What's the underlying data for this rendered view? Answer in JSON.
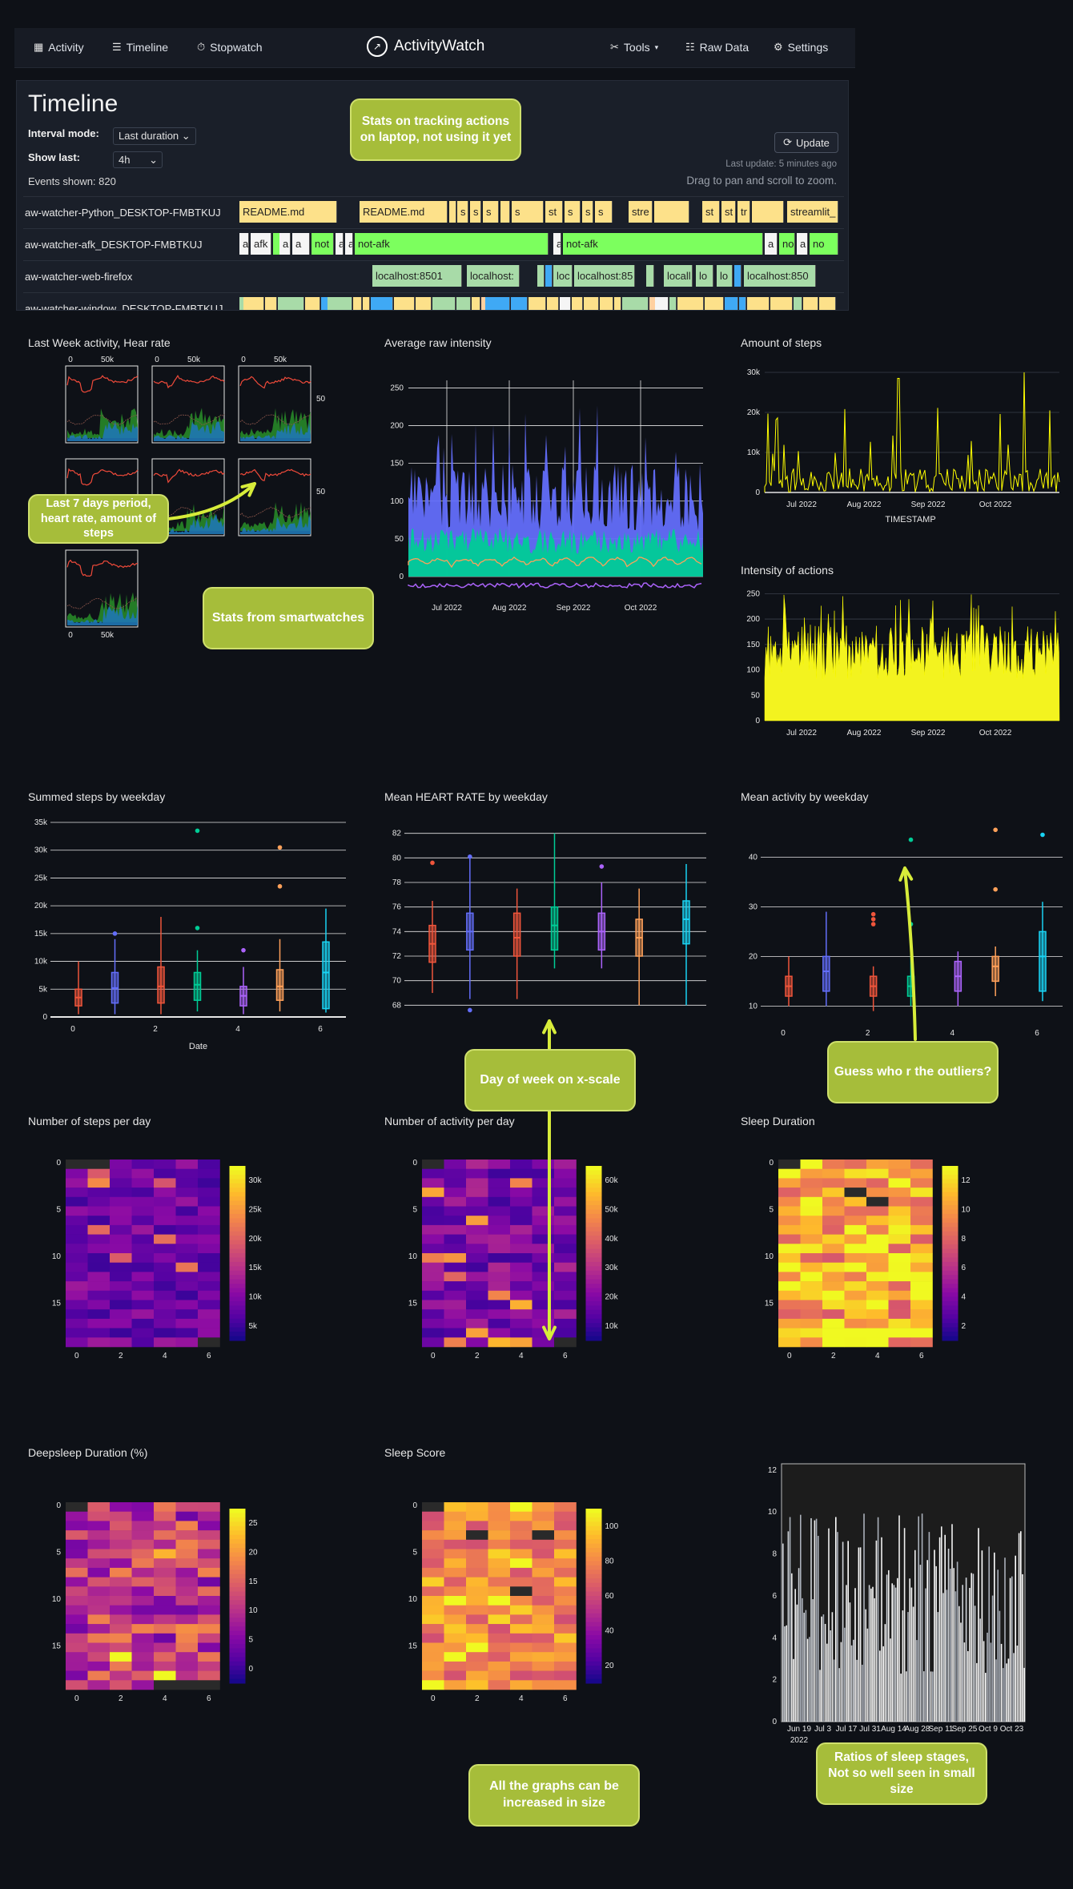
{
  "nav": {
    "activity": "Activity",
    "timeline": "Timeline",
    "stopwatch": "Stopwatch",
    "brand": "ActivityWatch",
    "tools": "Tools",
    "raw_data": "Raw Data",
    "settings": "Settings"
  },
  "timeline": {
    "title": "Timeline",
    "interval_mode_label": "Interval mode:",
    "interval_mode_value": "Last duration",
    "show_last_label": "Show last:",
    "show_last_value": "4h",
    "events_shown": "Events shown: 820",
    "update_label": "Update",
    "last_update": "Last update: 5 minutes ago",
    "drag_hint": "Drag to pan and scroll to zoom.",
    "rows": [
      {
        "label": "aw-watcher-Python_DESKTOP-FMBTKUJ"
      },
      {
        "label": "aw-watcher-afk_DESKTOP-FMBTKUJ"
      },
      {
        "label": "aw-watcher-web-firefox"
      },
      {
        "label": "aw-watcher-window_DESKTOP-FMBTKUJ"
      }
    ],
    "segments": {
      "python": [
        "README.md",
        "README.md",
        "s",
        "s",
        "s",
        "s",
        "st",
        "s",
        "s",
        "s",
        "stre",
        "st",
        "st",
        "tr",
        "streamlit_"
      ],
      "afk": [
        "a",
        "afk",
        "a",
        "a",
        "not",
        "a",
        "a",
        "not-afk",
        "a",
        "not-afk",
        "a",
        "no",
        "a",
        "no"
      ],
      "web": [
        "localhost:8501",
        "localhost:",
        "loc",
        "localhost:85",
        "locall",
        "lo",
        "lo",
        "localhost:850"
      ]
    }
  },
  "callouts": {
    "laptop": "Stats on tracking actions on laptop, not using it yet",
    "last7": "Last 7 days period, heart rate, amount of steps",
    "smartwatch": "Stats from smartwatches",
    "dayofweek": "Day of week on  x-scale",
    "outliers": "Guess who r the outliers?",
    "enlarge": "All the graphs can be increased in size",
    "sleepstages": "Ratios of sleep stages, Not so well seen in small size"
  },
  "charts": {
    "last_week_title": "Last Week activity, Hear rate",
    "avg_raw_title": "Average raw intensity",
    "amount_steps_title": "Amount of steps",
    "intensity_title": "Intensity of actions",
    "summed_steps_title": "Summed steps by weekday",
    "mean_hr_title": "Mean HEART RATE by weekday",
    "mean_activity_title": "Mean activity by weekday",
    "steps_per_day_title": "Number of steps per day",
    "activity_per_day_title": "Number of activity per day",
    "sleep_duration_title": "Sleep Duration",
    "deepsleep_title": "Deepsleep Duration (%)",
    "sleep_score_title": "Sleep Score"
  },
  "chart_data": [
    {
      "type": "line",
      "title": "Average raw intensity",
      "x": [
        "Jul 2022",
        "Aug 2022",
        "Sep 2022",
        "Oct 2022"
      ],
      "yticks": [
        0,
        50,
        100,
        150,
        200,
        250
      ],
      "ylim": [
        0,
        260
      ],
      "series_colors": [
        "#636efa",
        "#00cc96",
        "#ffa15a",
        "#ab63fa",
        "#ef553b"
      ]
    },
    {
      "type": "line",
      "title": "Amount of steps",
      "xlabel": "TIMESTAMP",
      "x": [
        "Jul 2022",
        "Aug 2022",
        "Sep 2022",
        "Oct 2022"
      ],
      "yticks": [
        "0",
        "10k",
        "20k",
        "30k"
      ],
      "ylim": [
        0,
        32000
      ],
      "color": "#ffff00"
    },
    {
      "type": "area",
      "title": "Intensity of actions",
      "x": [
        "Jul 2022",
        "Aug 2022",
        "Sep 2022",
        "Oct 2022"
      ],
      "yticks": [
        0,
        50,
        100,
        150,
        200,
        250
      ],
      "ylim": [
        0,
        260
      ],
      "color": "#ffff00"
    },
    {
      "type": "scatter",
      "title": "Summed steps by weekday",
      "xlabel": "Date",
      "categories": [
        0,
        1,
        2,
        3,
        4,
        5,
        6
      ],
      "yticks": [
        "0",
        "5k",
        "10k",
        "15k",
        "20k",
        "25k",
        "30k",
        "35k"
      ],
      "ylim": [
        0,
        35000
      ],
      "medians": [
        3500,
        5200,
        5500,
        5800,
        3800,
        5500,
        8000
      ],
      "q1": [
        2000,
        2500,
        2500,
        3000,
        2000,
        3000,
        1500
      ],
      "q3": [
        5000,
        8000,
        9000,
        8000,
        5500,
        8500,
        13500
      ],
      "lo": [
        500,
        500,
        500,
        1000,
        500,
        1000,
        800
      ],
      "hi": [
        10000,
        14000,
        18000,
        12000,
        9000,
        14000,
        19500
      ],
      "outliers": [
        [],
        [
          15000
        ],
        [],
        [
          33500,
          16000
        ],
        [
          12000
        ],
        [
          30500,
          23500
        ],
        []
      ],
      "colors": [
        "#ef553b",
        "#636efa",
        "#ef553b",
        "#00cc96",
        "#ab63fa",
        "#ffa15a",
        "#19d3f3"
      ]
    },
    {
      "type": "scatter",
      "title": "Mean HEART RATE by weekday",
      "categories": [
        0,
        1,
        2,
        3,
        4,
        5,
        6
      ],
      "yticks": [
        68,
        70,
        72,
        74,
        76,
        78,
        80,
        82
      ],
      "ylim": [
        67.5,
        82.5
      ],
      "medians": [
        73,
        74,
        73.5,
        74.5,
        74,
        73.5,
        75
      ],
      "q1": [
        71.5,
        72.5,
        72,
        72.5,
        72.5,
        72,
        73
      ],
      "q3": [
        74.5,
        75.5,
        75.5,
        76,
        75.5,
        75,
        76.5
      ],
      "lo": [
        69,
        68.5,
        68.5,
        71,
        71,
        68,
        68
      ],
      "hi": [
        76.5,
        80,
        77.5,
        82,
        78,
        77.5,
        79.5
      ],
      "outliers": [
        [
          79.6
        ],
        [
          80.1,
          67.6
        ],
        [],
        [],
        [
          79.3
        ],
        [],
        []
      ],
      "colors": [
        "#ef553b",
        "#636efa",
        "#ef553b",
        "#00cc96",
        "#ab63fa",
        "#ffa15a",
        "#19d3f3"
      ]
    },
    {
      "type": "scatter",
      "title": "Mean activity by weekday",
      "xlabel": "Date",
      "categories": [
        0,
        1,
        2,
        3,
        4,
        5,
        6
      ],
      "yticks": [
        10,
        20,
        30,
        40
      ],
      "ylim": [
        7,
        47
      ],
      "medians": [
        14,
        17,
        14,
        14,
        16,
        18,
        20
      ],
      "q1": [
        12,
        13,
        12,
        12,
        13,
        15,
        13
      ],
      "q3": [
        16,
        20,
        16,
        16,
        19,
        20,
        25
      ],
      "lo": [
        10,
        10,
        9,
        10,
        10,
        12,
        11
      ],
      "hi": [
        20,
        29,
        18,
        22,
        21,
        22,
        31
      ],
      "outliers": [
        [],
        [],
        [
          28.5,
          27.5,
          26.5
        ],
        [
          43.5,
          26.5
        ],
        [],
        [
          45.5,
          33.5
        ],
        [
          44.5
        ]
      ],
      "colors": [
        "#ef553b",
        "#636efa",
        "#ef553b",
        "#00cc96",
        "#ab63fa",
        "#ffa15a",
        "#19d3f3"
      ]
    },
    {
      "type": "heatmap",
      "title": "Number of steps per day",
      "xticks": [
        0,
        2,
        4,
        6
      ],
      "yticks": [
        0,
        5,
        10,
        15
      ],
      "colorbar": [
        "5k",
        "10k",
        "15k",
        "20k",
        "25k",
        "30k"
      ],
      "colorscale": "plasma"
    },
    {
      "type": "heatmap",
      "title": "Number of activity per day",
      "xticks": [
        0,
        2,
        4,
        6
      ],
      "yticks": [
        0,
        5,
        10,
        15
      ],
      "colorbar": [
        "10k",
        "20k",
        "30k",
        "40k",
        "50k",
        "60k"
      ],
      "colorscale": "plasma"
    },
    {
      "type": "heatmap",
      "title": "Sleep Duration",
      "xticks": [
        0,
        2,
        4,
        6
      ],
      "yticks": [
        0,
        5,
        10,
        15
      ],
      "colorbar": [
        "2",
        "4",
        "6",
        "8",
        "10",
        "12"
      ],
      "colorscale": "plasma"
    },
    {
      "type": "heatmap",
      "title": "Deepsleep Duration (%)",
      "xticks": [
        0,
        2,
        4,
        6
      ],
      "yticks": [
        0,
        5,
        10,
        15
      ],
      "colorbar": [
        "0",
        "5",
        "10",
        "15",
        "20",
        "25"
      ],
      "colorscale": "plasma"
    },
    {
      "type": "heatmap",
      "title": "Sleep Score",
      "xticks": [
        0,
        2,
        4,
        6
      ],
      "yticks": [
        0,
        5,
        10,
        15
      ],
      "colorbar": [
        "20",
        "40",
        "60",
        "80",
        "100"
      ],
      "colorscale": "plasma"
    },
    {
      "type": "bar",
      "title": "",
      "x": [
        "Jun 19",
        "Jul 3",
        "Jul 17",
        "Jul 31",
        "Aug 14",
        "Aug 28",
        "Sep 11",
        "Sep 25",
        "Oct 9",
        "Oct 23"
      ],
      "xsub": "2022",
      "yticks": [
        0,
        2,
        4,
        6,
        8,
        10,
        12
      ],
      "ylim": [
        0,
        12.3
      ]
    }
  ]
}
